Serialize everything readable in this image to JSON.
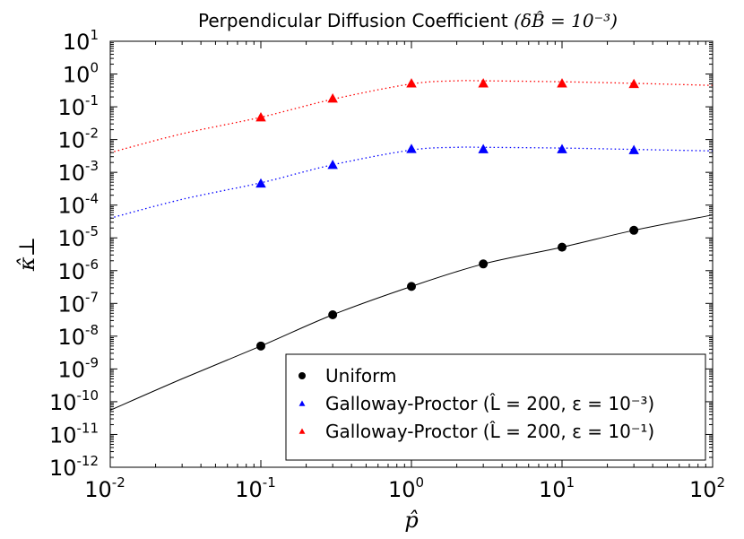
{
  "chart_data": {
    "type": "scatter",
    "title": "Perpendicular Diffusion Coefficient (δB̂ = 10⁻³)",
    "title_main": "Perpendicular Diffusion Coefficient",
    "title_math": "(δB̂ = 10⁻³)",
    "xlabel": "p̂",
    "ylabel": "κ̂⊥",
    "xscale": "log",
    "yscale": "log",
    "xlim": [
      0.01,
      100
    ],
    "ylim": [
      1e-12,
      10
    ],
    "x_tick_exponents": [
      -2,
      -1,
      0,
      1,
      2
    ],
    "y_tick_exponents": [
      -12,
      -11,
      -10,
      -9,
      -8,
      -7,
      -6,
      -5,
      -4,
      -3,
      -2,
      -1,
      0,
      1
    ],
    "tick_base": "10",
    "grid": false,
    "legend_position": "lower-right",
    "series": [
      {
        "name": "Uniform",
        "legend_label": "Uniform",
        "marker": "circle",
        "color": "#000000",
        "x": [
          0.1,
          0.3,
          1,
          3,
          10,
          30
        ],
        "y": [
          5e-09,
          4.5e-08,
          3.3e-07,
          1.6e-06,
          5.2e-06,
          1.7e-05
        ],
        "fit_line": {
          "style": "solid",
          "x": [
            0.01,
            0.03,
            0.1,
            0.3,
            1,
            3,
            10,
            30,
            100
          ],
          "y": [
            5.5e-11,
            5e-10,
            5e-09,
            4.5e-08,
            3.3e-07,
            1.6e-06,
            5.2e-06,
            1.7e-05,
            5e-05
          ]
        }
      },
      {
        "name": "Galloway-Proctor (L̂ = 200, ε = 10⁻³)",
        "legend_label": "Galloway-Proctor (L̂ = 200, ε = 10⁻³)",
        "marker": "triangle",
        "color": "#0000ff",
        "x": [
          0.1,
          0.3,
          1,
          3,
          10,
          30
        ],
        "y": [
          0.00046,
          0.0017,
          0.0052,
          0.0051,
          0.0051,
          0.0048
        ],
        "fit_line": {
          "style": "dotted",
          "x": [
            0.01,
            0.03,
            0.1,
            0.3,
            1,
            2,
            3,
            10,
            30,
            100
          ],
          "y": [
            4e-05,
            0.00015,
            0.00048,
            0.0017,
            0.0048,
            0.0058,
            0.0058,
            0.0055,
            0.005,
            0.0045
          ]
        }
      },
      {
        "name": "Galloway-Proctor (L̂ = 200, ε = 10⁻¹)",
        "legend_label": "Galloway-Proctor (L̂ = 200, ε = 10⁻¹)",
        "marker": "triangle",
        "color": "#ff0000",
        "x": [
          0.1,
          0.3,
          1,
          3,
          10,
          30
        ],
        "y": [
          0.048,
          0.18,
          0.52,
          0.52,
          0.52,
          0.5
        ],
        "fit_line": {
          "style": "dotted",
          "x": [
            0.01,
            0.03,
            0.1,
            0.3,
            1,
            2,
            3,
            10,
            30,
            100
          ],
          "y": [
            0.004,
            0.015,
            0.048,
            0.17,
            0.5,
            0.62,
            0.62,
            0.58,
            0.52,
            0.45
          ]
        }
      }
    ]
  }
}
